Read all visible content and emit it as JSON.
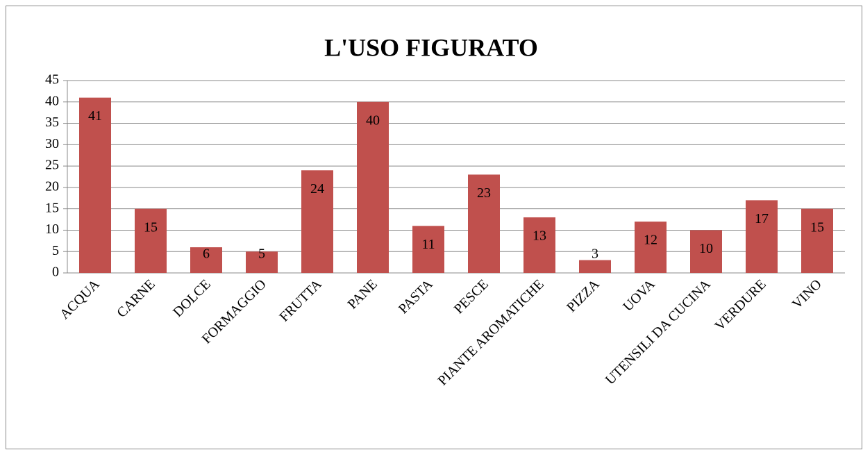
{
  "chart_data": {
    "type": "bar",
    "title": "L'USO FIGURATO",
    "categories": [
      "ACQUA",
      "CARNE",
      "DOLCE",
      "FORMAGGIO",
      "FRUTTA",
      "PANE",
      "PASTA",
      "PESCE",
      "PIANTE AROMATICHE",
      "PIZZA",
      "UOVA",
      "UTENSILI DA CUCINA",
      "VERDURE",
      "VINO"
    ],
    "values": [
      41,
      15,
      6,
      5,
      24,
      40,
      11,
      23,
      13,
      3,
      12,
      10,
      17,
      15
    ],
    "color": "#c0504d",
    "ylim": [
      0,
      45
    ],
    "yticks": [
      0,
      5,
      10,
      15,
      20,
      25,
      30,
      35,
      40,
      45
    ],
    "grid": true,
    "data_labels": true
  }
}
